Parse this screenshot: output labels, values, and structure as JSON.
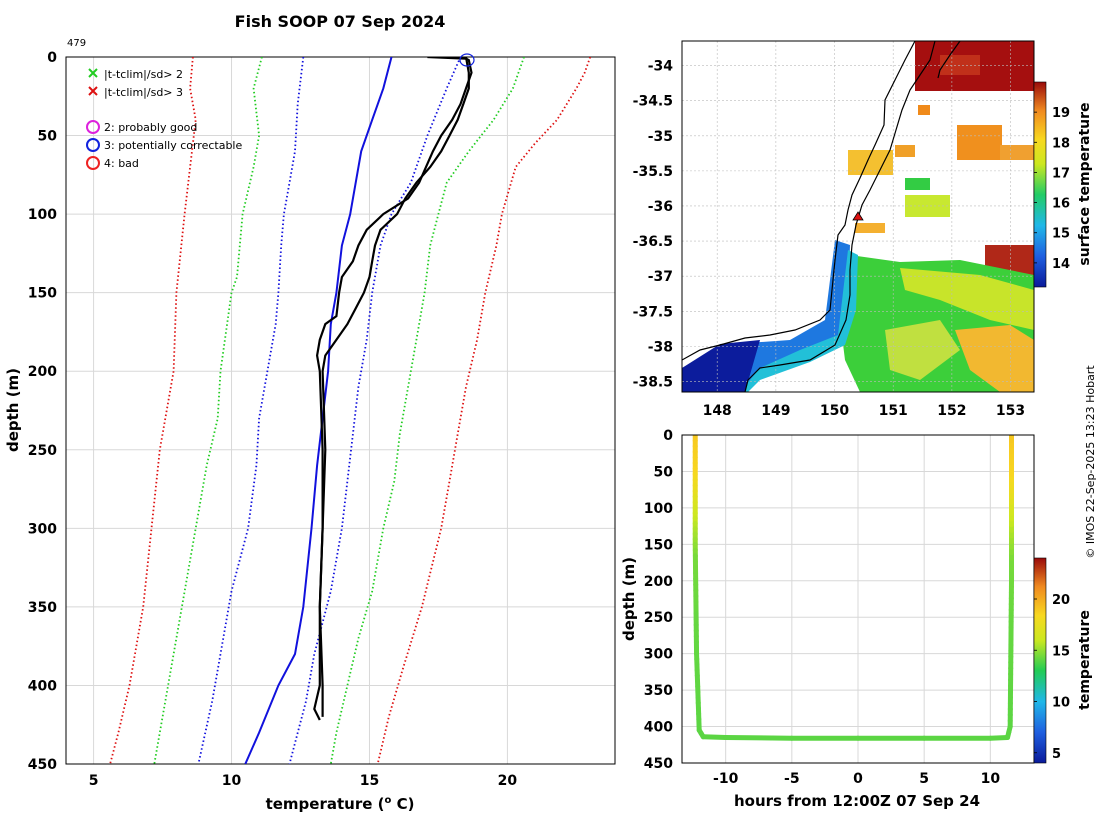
{
  "title": "Fish SOOP 07 Sep 2024",
  "profile_id": "479",
  "credit": "© IMOS 22-Sep-2025 13:23 Hobart",
  "colors": {
    "sd2": "#22cc22",
    "sd3": "#dd1111",
    "sd1": "#1111dd",
    "mean": "#1111dd",
    "profile": "#000000",
    "grid": "#d8d8d8",
    "flag2": "#dd22dd",
    "flag3": "#1122dd",
    "flag4": "#ee2222"
  },
  "legend": {
    "cross_green": "|t-tclim|/sd> 2",
    "cross_red": "|t-tclim|/sd> 3",
    "flag2": "2: probably good",
    "flag3": "3: potentially correctable",
    "flag4": "4: bad"
  },
  "chart_data": [
    {
      "id": "profile",
      "type": "line",
      "xlabel": "temperature (",
      "xlabel_sup": "o",
      "xlabel_end": " C)",
      "ylabel": "depth (m)",
      "xlim": [
        4,
        23.9
      ],
      "ylim": [
        0,
        450
      ],
      "y_inverted": true,
      "xticks": [
        5,
        10,
        15,
        20
      ],
      "yticks": [
        0,
        50,
        100,
        150,
        200,
        250,
        300,
        350,
        400,
        450
      ],
      "grid": true,
      "series": [
        {
          "name": "climatology mean",
          "style": "solid",
          "color_key": "mean",
          "points": [
            [
              15.8,
              0
            ],
            [
              15.5,
              20
            ],
            [
              15.1,
              40
            ],
            [
              14.7,
              60
            ],
            [
              14.5,
              80
            ],
            [
              14.3,
              100
            ],
            [
              14.0,
              120
            ],
            [
              13.8,
              150
            ],
            [
              13.6,
              170
            ],
            [
              13.5,
              200
            ],
            [
              13.3,
              230
            ],
            [
              13.1,
              260
            ],
            [
              12.9,
              300
            ],
            [
              12.6,
              350
            ],
            [
              12.3,
              380
            ],
            [
              11.7,
              400
            ],
            [
              11.0,
              430
            ],
            [
              10.5,
              450
            ]
          ]
        },
        {
          "name": "-1 sd",
          "style": "dotted",
          "color_key": "sd1",
          "points": [
            [
              12.6,
              0
            ],
            [
              12.4,
              30
            ],
            [
              12.3,
              60
            ],
            [
              12.1,
              80
            ],
            [
              11.9,
              100
            ],
            [
              11.8,
              120
            ],
            [
              11.7,
              150
            ],
            [
              11.6,
              170
            ],
            [
              11.3,
              200
            ],
            [
              11.0,
              230
            ],
            [
              10.9,
              260
            ],
            [
              10.6,
              300
            ],
            [
              10.0,
              340
            ],
            [
              9.6,
              380
            ],
            [
              9.3,
              410
            ],
            [
              8.8,
              450
            ]
          ]
        },
        {
          "name": "+1 sd",
          "style": "dotted",
          "color_key": "sd1",
          "points": [
            [
              18.3,
              0
            ],
            [
              17.8,
              20
            ],
            [
              17.1,
              50
            ],
            [
              16.5,
              80
            ],
            [
              15.8,
              100
            ],
            [
              15.4,
              120
            ],
            [
              15.1,
              150
            ],
            [
              14.9,
              180
            ],
            [
              14.6,
              210
            ],
            [
              14.4,
              240
            ],
            [
              14.2,
              270
            ],
            [
              14.0,
              300
            ],
            [
              13.6,
              340
            ],
            [
              13.3,
              360
            ],
            [
              13.0,
              380
            ],
            [
              12.7,
              410
            ],
            [
              12.1,
              450
            ]
          ]
        },
        {
          "name": "-2 sd",
          "style": "dotted",
          "color_key": "sd2",
          "points": [
            [
              11.1,
              0
            ],
            [
              10.8,
              20
            ],
            [
              11.0,
              50
            ],
            [
              10.8,
              70
            ],
            [
              10.4,
              100
            ],
            [
              10.2,
              140
            ],
            [
              10.0,
              150
            ],
            [
              9.6,
              200
            ],
            [
              9.5,
              230
            ],
            [
              9.1,
              260
            ],
            [
              8.7,
              300
            ],
            [
              8.2,
              350
            ],
            [
              7.7,
              400
            ],
            [
              7.4,
              430
            ],
            [
              7.2,
              450
            ]
          ]
        },
        {
          "name": "+2 sd",
          "style": "dotted",
          "color_key": "sd2",
          "points": [
            [
              20.6,
              0
            ],
            [
              20.2,
              20
            ],
            [
              19.5,
              40
            ],
            [
              18.6,
              60
            ],
            [
              17.8,
              80
            ],
            [
              17.5,
              100
            ],
            [
              17.2,
              120
            ],
            [
              17.0,
              150
            ],
            [
              16.7,
              180
            ],
            [
              16.4,
              210
            ],
            [
              16.1,
              240
            ],
            [
              15.9,
              270
            ],
            [
              15.5,
              300
            ],
            [
              15.1,
              340
            ],
            [
              14.6,
              370
            ],
            [
              14.2,
              400
            ],
            [
              13.8,
              430
            ],
            [
              13.6,
              450
            ]
          ]
        },
        {
          "name": "-3 sd",
          "style": "dotted",
          "color_key": "sd3",
          "points": [
            [
              8.6,
              0
            ],
            [
              8.5,
              20
            ],
            [
              8.7,
              40
            ],
            [
              8.5,
              70
            ],
            [
              8.3,
              100
            ],
            [
              8.0,
              150
            ],
            [
              7.9,
              200
            ],
            [
              7.4,
              250
            ],
            [
              7.1,
              300
            ],
            [
              6.8,
              350
            ],
            [
              6.3,
              400
            ],
            [
              5.9,
              430
            ],
            [
              5.6,
              450
            ]
          ]
        },
        {
          "name": "+3 sd",
          "style": "dotted",
          "color_key": "sd3",
          "points": [
            [
              23.0,
              0
            ],
            [
              22.8,
              10
            ],
            [
              22.5,
              20
            ],
            [
              21.8,
              40
            ],
            [
              21.0,
              55
            ],
            [
              20.3,
              70
            ],
            [
              19.8,
              100
            ],
            [
              19.6,
              120
            ],
            [
              19.2,
              150
            ],
            [
              18.9,
              180
            ],
            [
              18.5,
              210
            ],
            [
              18.2,
              240
            ],
            [
              17.9,
              270
            ],
            [
              17.6,
              300
            ],
            [
              16.9,
              350
            ],
            [
              16.2,
              390
            ],
            [
              15.7,
              420
            ],
            [
              15.3,
              450
            ]
          ]
        },
        {
          "name": "observed down",
          "style": "solid",
          "color_key": "profile",
          "points": [
            [
              17.1,
              0
            ],
            [
              18.5,
              1
            ],
            [
              18.6,
              2
            ],
            [
              18.7,
              10
            ],
            [
              18.5,
              20
            ],
            [
              18.3,
              30
            ],
            [
              18.0,
              40
            ],
            [
              17.6,
              50
            ],
            [
              17.3,
              60
            ],
            [
              16.8,
              80
            ],
            [
              16.4,
              90
            ],
            [
              15.5,
              100
            ],
            [
              14.9,
              110
            ],
            [
              14.6,
              120
            ],
            [
              14.4,
              130
            ],
            [
              14.0,
              140
            ],
            [
              13.9,
              150
            ],
            [
              13.8,
              165
            ],
            [
              13.4,
              170
            ],
            [
              13.2,
              180
            ],
            [
              13.1,
              190
            ],
            [
              13.2,
              200
            ],
            [
              13.3,
              250
            ],
            [
              13.3,
              300
            ],
            [
              13.2,
              350
            ],
            [
              13.2,
              400
            ],
            [
              13.0,
              415
            ],
            [
              13.2,
              422
            ]
          ]
        },
        {
          "name": "observed up",
          "style": "solid",
          "color_key": "profile",
          "points": [
            [
              18.5,
              0
            ],
            [
              18.6,
              10
            ],
            [
              18.6,
              20
            ],
            [
              18.4,
              30
            ],
            [
              18.2,
              40
            ],
            [
              17.9,
              50
            ],
            [
              17.6,
              60
            ],
            [
              17.2,
              70
            ],
            [
              16.7,
              80
            ],
            [
              16.3,
              90
            ],
            [
              16.0,
              100
            ],
            [
              15.4,
              110
            ],
            [
              15.2,
              120
            ],
            [
              15.1,
              130
            ],
            [
              15.0,
              140
            ],
            [
              14.8,
              150
            ],
            [
              14.5,
              160
            ],
            [
              14.2,
              170
            ],
            [
              13.8,
              180
            ],
            [
              13.4,
              190
            ],
            [
              13.3,
              200
            ],
            [
              13.4,
              250
            ],
            [
              13.3,
              300
            ],
            [
              13.2,
              350
            ],
            [
              13.3,
              400
            ],
            [
              13.3,
              420
            ]
          ]
        }
      ]
    },
    {
      "id": "map",
      "type": "heatmap",
      "colorbar_label": "surface temperature",
      "xticks": [
        148,
        149,
        150,
        151,
        152,
        153
      ],
      "yticks": [
        -34,
        -34.5,
        -35,
        -35.5,
        -36,
        -36.5,
        -37,
        -37.5,
        -38,
        -38.5
      ],
      "xlim": [
        147.4,
        153.4
      ],
      "ylim": [
        -38.65,
        -33.65
      ],
      "clim": [
        13.2,
        20
      ],
      "colorbar_ticks": [
        14,
        15,
        16,
        17,
        18,
        19
      ],
      "grid": true,
      "marker": {
        "lon": 150.4,
        "lat": -36.1
      }
    },
    {
      "id": "section",
      "type": "heatmap",
      "xlabel": "hours from 12:00Z 07 Sep 24",
      "ylabel": "depth (m)",
      "colorbar_label": "temperature",
      "xlim": [
        -13.3,
        13.3
      ],
      "ylim": [
        0,
        450
      ],
      "xticks": [
        -10,
        -5,
        0,
        5,
        10
      ],
      "yticks": [
        0,
        50,
        100,
        150,
        200,
        250,
        300,
        350,
        400,
        450
      ],
      "clim": [
        4,
        24
      ],
      "colorbar_ticks": [
        5,
        10,
        15,
        20
      ],
      "grid": true,
      "track": [
        [
          -12.3,
          0
        ],
        [
          -12.3,
          100
        ],
        [
          -12.3,
          150
        ],
        [
          -12.2,
          300
        ],
        [
          -12.0,
          405
        ],
        [
          -11.7,
          414
        ],
        [
          -10,
          415
        ],
        [
          -5,
          416
        ],
        [
          0,
          416
        ],
        [
          5,
          416
        ],
        [
          10,
          416
        ],
        [
          11.3,
          415
        ],
        [
          11.5,
          400
        ],
        [
          11.6,
          200
        ],
        [
          11.6,
          100
        ],
        [
          11.6,
          0
        ]
      ],
      "track_temp_profile": [
        [
          0,
          19
        ],
        [
          50,
          18.5
        ],
        [
          80,
          17.5
        ],
        [
          100,
          16.5
        ],
        [
          130,
          15.5
        ],
        [
          170,
          14.5
        ],
        [
          250,
          14.2
        ],
        [
          420,
          14.0
        ]
      ]
    }
  ]
}
